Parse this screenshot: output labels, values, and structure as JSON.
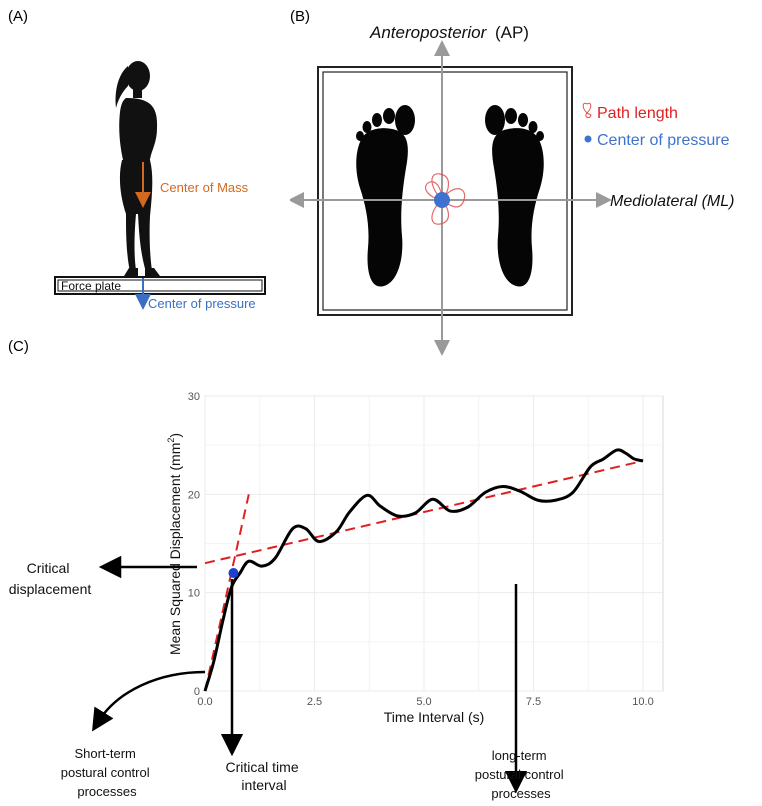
{
  "panels": {
    "a": {
      "label": "(A)",
      "center_of_mass": "Center of Mass",
      "force_plate": "Force plate",
      "center_of_pressure": "Center of pressure"
    },
    "b": {
      "label": "(B)",
      "ap_axis_italic": "Anteroposterior",
      "ap_axis_abbrev": "(AP)",
      "ml_axis": "Mediolateral (ML)",
      "legend_path": "Path length",
      "legend_cop": "Center of pressure"
    },
    "c": {
      "label": "(C)",
      "ylabel_main": "Mean Squared Displacement (mm",
      "ylabel_sup": "2",
      "ylabel_close": ")",
      "xlabel": "Time Interval (s)",
      "critical_displacement_1": "Critical",
      "critical_displacement_2": "displacement",
      "critical_time_1": "Critical time",
      "critical_time_2": "interval",
      "short_term_1": "Short-term",
      "short_term_2": "postural control",
      "short_term_3": "processes",
      "long_term_1": "long-term",
      "long_term_2": "postural control",
      "long_term_3": "processes"
    }
  },
  "colors": {
    "com_arrow": "#d2691e",
    "cop_arrow": "#3a6fc4",
    "path": "#e05050",
    "cop_dot": "#3f72cf",
    "trend": "#e02020",
    "critical_point": "#1f3fd0",
    "axis_gray": "#9a9a9a"
  },
  "chart_data": {
    "type": "line",
    "xlabel": "Time Interval (s)",
    "ylabel": "Mean Squared Displacement (mm2)",
    "xlim": [
      0,
      10
    ],
    "ylim": [
      0,
      30
    ],
    "xticks": [
      "0.0",
      "2.5",
      "5.0",
      "7.5",
      "10.0"
    ],
    "yticks": [
      "0",
      "10",
      "20",
      "30"
    ],
    "grid": true,
    "series": [
      {
        "x": [
          0,
          0.2,
          0.4,
          0.6,
          0.8,
          1.0,
          1.3,
          1.6,
          2.0,
          2.3,
          2.6,
          3.0,
          3.3,
          3.7,
          4.0,
          4.4,
          4.8,
          5.2,
          5.6,
          6.0,
          6.4,
          6.8,
          7.2,
          7.6,
          8.0,
          8.4,
          8.8,
          9.1,
          9.4,
          9.6,
          9.8,
          10.0
        ],
        "y": [
          0,
          3,
          7,
          10.5,
          12,
          13.2,
          12.7,
          13.5,
          16.5,
          16.5,
          15.2,
          16.2,
          18.2,
          19.9,
          18.8,
          17.8,
          18.1,
          19.5,
          18.3,
          18.7,
          20.2,
          20.8,
          20.3,
          19.4,
          19.4,
          20.2,
          22.8,
          23.6,
          24.5,
          24.2,
          23.6,
          23.4
        ]
      }
    ],
    "trend_lines": [
      {
        "x": [
          0,
          1.0
        ],
        "y": [
          0,
          20
        ]
      },
      {
        "x": [
          0,
          10.0
        ],
        "y": [
          13,
          23.4
        ]
      }
    ],
    "critical_point": {
      "x": 0.65,
      "y": 12
    }
  }
}
